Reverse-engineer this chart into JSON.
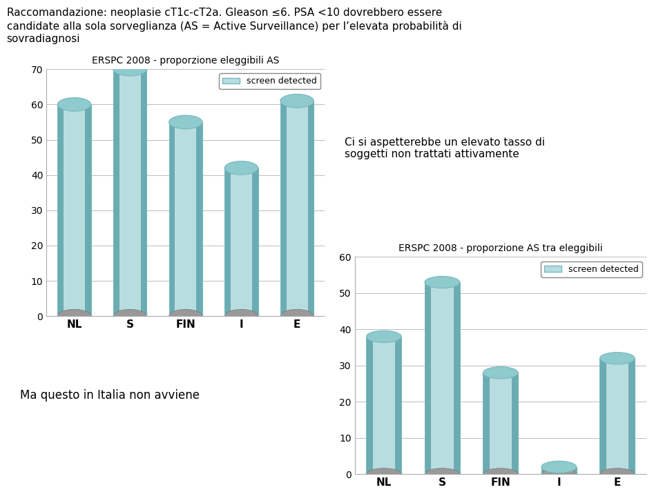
{
  "header_text_line1": "Raccomandazione: neoplasie cT1c-cT2a. Gleason ≤6. PSA <10 dovrebbero essere",
  "header_text_line2": "candidate alla sola sorveglianza (AS = Active Surveillance) per l’elevata probabilità di",
  "header_text_line3": "sovradiagnosi",
  "chart1": {
    "title": "ERSPC 2008 - proporzione eleggibili AS",
    "categories": [
      "NL",
      "S",
      "FIN",
      "I",
      "E"
    ],
    "values": [
      60,
      70,
      55,
      42,
      61
    ],
    "ylim": [
      0,
      70
    ],
    "yticks": [
      0,
      10,
      20,
      30,
      40,
      50,
      60,
      70
    ],
    "legend_label": "screen detected"
  },
  "chart2": {
    "title": "ERSPC 2008 - proporzione AS tra eleggibili",
    "categories": [
      "NL",
      "S",
      "FIN",
      "I",
      "E"
    ],
    "values": [
      38,
      53,
      28,
      2,
      32
    ],
    "ylim": [
      0,
      60
    ],
    "yticks": [
      0,
      10,
      20,
      30,
      40,
      50,
      60
    ],
    "legend_label": "screen detected"
  },
  "annotation1": "Ci si aspetterebbe un elevato tasso di\nsoggetti non trattati attivamente",
  "annotation2": "Ma questo in Italia non avviene",
  "bar_color_light": "#b8dde0",
  "bar_color_mid": "#96c8cc",
  "bar_color_dark": "#6aacb2",
  "bar_color_top": "#8ecace",
  "bar_color_edge": "#78b8be",
  "floor_color": "#999999",
  "background_color": "#ffffff",
  "grid_color": "#bbbbbb",
  "title_fontsize": 10,
  "axis_fontsize": 10,
  "tick_fontsize": 10,
  "header_fontsize": 11
}
